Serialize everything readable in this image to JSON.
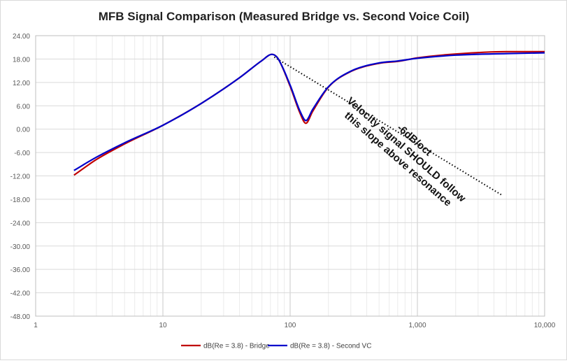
{
  "chart_data": {
    "type": "line",
    "title": "MFB Signal Comparison (Measured Bridge vs. Second Voice Coil)",
    "xscale": "log",
    "xlim": [
      1,
      10000
    ],
    "ylim": [
      -48,
      24
    ],
    "x_tick_labels": [
      "1",
      "10",
      "100",
      "1,000",
      "10,000"
    ],
    "y_tick_labels": [
      "24.00",
      "18.00",
      "12.00",
      "6.00",
      "0.00",
      "-6.00",
      "-12.00",
      "-18.00",
      "-24.00",
      "-30.00",
      "-36.00",
      "-42.00",
      "-48.00"
    ],
    "grid": true,
    "legend_position": "bottom",
    "series": [
      {
        "name": "dB(Re = 3.8) - Bridge",
        "color": "#c00000",
        "x": [
          2,
          3,
          5,
          10,
          20,
          40,
          60,
          72,
          80,
          100,
          120,
          133,
          150,
          200,
          300,
          500,
          700,
          1000,
          2000,
          5000,
          10000
        ],
        "y": [
          -11.8,
          -7.8,
          -3.8,
          1.0,
          6.6,
          13.2,
          17.6,
          19.2,
          18.2,
          11.0,
          4.0,
          1.5,
          4.5,
          10.8,
          14.8,
          16.9,
          17.4,
          18.3,
          19.3,
          19.9,
          19.9
        ]
      },
      {
        "name": "dB(Re = 3.8) - Second VC",
        "color": "#0000cc",
        "x": [
          2,
          3,
          5,
          10,
          20,
          40,
          60,
          72,
          80,
          100,
          120,
          133,
          150,
          200,
          300,
          500,
          700,
          1000,
          2000,
          5000,
          10000
        ],
        "y": [
          -10.6,
          -7.2,
          -3.5,
          1.0,
          6.6,
          13.2,
          17.6,
          19.2,
          18.2,
          11.3,
          4.5,
          2.2,
          5.0,
          10.9,
          14.9,
          17.0,
          17.5,
          18.2,
          19.0,
          19.4,
          19.6
        ]
      }
    ],
    "reference_line": {
      "style": "dotted",
      "color": "#000000",
      "x": [
        75,
        4600
      ],
      "y": [
        18.5,
        -16.9
      ]
    },
    "annotations": [
      "-6dB/oct",
      "Velocity signal SHOULD follow",
      "this slope above resonance"
    ]
  }
}
